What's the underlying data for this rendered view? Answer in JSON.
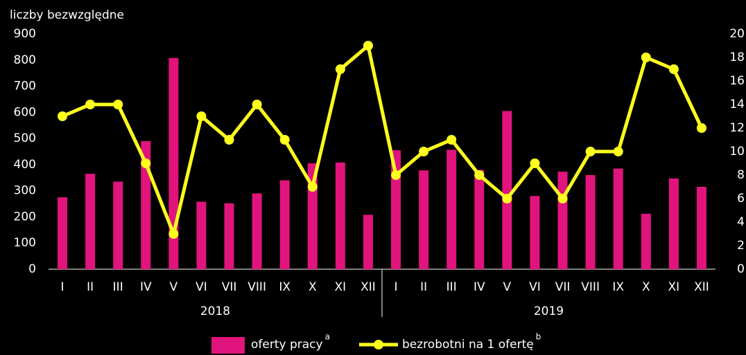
{
  "chart_data": {
    "type": "bar_line",
    "y_axis_label": "liczby bezwzględne",
    "categories": [
      "I",
      "II",
      "III",
      "IV",
      "V",
      "VI",
      "VII",
      "VIII",
      "IX",
      "X",
      "XI",
      "XII",
      "I",
      "II",
      "III",
      "IV",
      "V",
      "VI",
      "VII",
      "VIII",
      "IX",
      "X",
      "XI",
      "XII"
    ],
    "groups": [
      "2018",
      "2019"
    ],
    "series": [
      {
        "name": "oferty pracy",
        "superscript": "a",
        "color": "#e0147c",
        "kind": "bar",
        "values": [
          275,
          365,
          335,
          490,
          808,
          258,
          252,
          290,
          340,
          405,
          408,
          208,
          455,
          378,
          457,
          380,
          605,
          280,
          373,
          360,
          385,
          212,
          347,
          315
        ]
      },
      {
        "name": "bezrobotni na 1 ofertę",
        "superscript": "b",
        "color": "#ffff1e",
        "kind": "line",
        "axis": "y2",
        "values": [
          13,
          14,
          14,
          9,
          3,
          13,
          11,
          14,
          11,
          7,
          17,
          19,
          8,
          10,
          11,
          8,
          6,
          9,
          6,
          10,
          10,
          18,
          17,
          12
        ]
      }
    ],
    "ylim": [
      0,
      900
    ],
    "yticks": [
      0,
      100,
      200,
      300,
      400,
      500,
      600,
      700,
      800,
      900
    ],
    "y2lim": [
      0,
      20
    ],
    "y2ticks": [
      0,
      2,
      4,
      6,
      8,
      10,
      12,
      14,
      16,
      18,
      20
    ]
  }
}
